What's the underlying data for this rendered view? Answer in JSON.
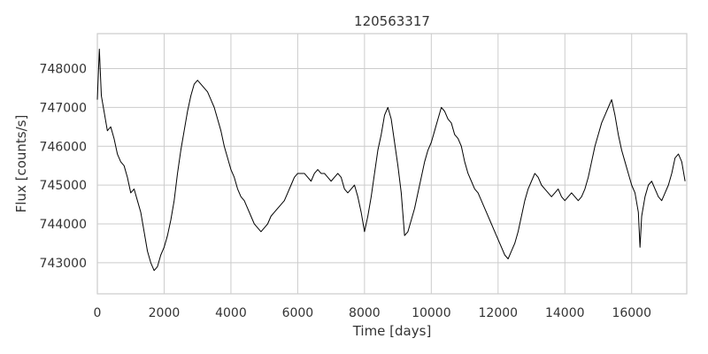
{
  "chart_data": {
    "type": "line",
    "title": "120563317",
    "xlabel": "Time [days]",
    "ylabel": "Flux [counts/s]",
    "xlim": [
      0,
      17650
    ],
    "ylim": [
      742200,
      748900
    ],
    "grid": true,
    "x_ticks": [
      0,
      2000,
      4000,
      6000,
      8000,
      10000,
      12000,
      14000,
      16000
    ],
    "y_ticks": [
      743000,
      744000,
      745000,
      746000,
      747000,
      748000
    ],
    "series": [
      {
        "color": "#000000",
        "points": [
          [
            0,
            747200
          ],
          [
            60,
            748500
          ],
          [
            120,
            747300
          ],
          [
            200,
            746900
          ],
          [
            300,
            746400
          ],
          [
            400,
            746500
          ],
          [
            500,
            746200
          ],
          [
            600,
            745800
          ],
          [
            700,
            745600
          ],
          [
            800,
            745500
          ],
          [
            900,
            745200
          ],
          [
            1000,
            744800
          ],
          [
            1100,
            744900
          ],
          [
            1200,
            744600
          ],
          [
            1300,
            744300
          ],
          [
            1400,
            743800
          ],
          [
            1500,
            743300
          ],
          [
            1600,
            743000
          ],
          [
            1700,
            742800
          ],
          [
            1800,
            742900
          ],
          [
            1900,
            743200
          ],
          [
            2000,
            743400
          ],
          [
            2100,
            743700
          ],
          [
            2200,
            744100
          ],
          [
            2300,
            744600
          ],
          [
            2400,
            745300
          ],
          [
            2500,
            745900
          ],
          [
            2600,
            746400
          ],
          [
            2700,
            746900
          ],
          [
            2800,
            747300
          ],
          [
            2900,
            747600
          ],
          [
            3000,
            747700
          ],
          [
            3100,
            747600
          ],
          [
            3200,
            747500
          ],
          [
            3300,
            747400
          ],
          [
            3400,
            747200
          ],
          [
            3500,
            747000
          ],
          [
            3600,
            746700
          ],
          [
            3700,
            746400
          ],
          [
            3800,
            746000
          ],
          [
            3900,
            745700
          ],
          [
            4000,
            745400
          ],
          [
            4100,
            745200
          ],
          [
            4200,
            744900
          ],
          [
            4300,
            744700
          ],
          [
            4400,
            744600
          ],
          [
            4500,
            744400
          ],
          [
            4600,
            744200
          ],
          [
            4700,
            744000
          ],
          [
            4800,
            743900
          ],
          [
            4900,
            743800
          ],
          [
            5000,
            743900
          ],
          [
            5100,
            744000
          ],
          [
            5200,
            744200
          ],
          [
            5300,
            744300
          ],
          [
            5400,
            744400
          ],
          [
            5500,
            744500
          ],
          [
            5600,
            744600
          ],
          [
            5700,
            744800
          ],
          [
            5800,
            745000
          ],
          [
            5900,
            745200
          ],
          [
            6000,
            745300
          ],
          [
            6100,
            745300
          ],
          [
            6200,
            745300
          ],
          [
            6300,
            745200
          ],
          [
            6400,
            745100
          ],
          [
            6500,
            745300
          ],
          [
            6600,
            745400
          ],
          [
            6700,
            745300
          ],
          [
            6800,
            745300
          ],
          [
            6900,
            745200
          ],
          [
            7000,
            745100
          ],
          [
            7100,
            745200
          ],
          [
            7200,
            745300
          ],
          [
            7300,
            745200
          ],
          [
            7400,
            744900
          ],
          [
            7500,
            744800
          ],
          [
            7600,
            744900
          ],
          [
            7700,
            745000
          ],
          [
            7800,
            744700
          ],
          [
            7900,
            744300
          ],
          [
            8000,
            743800
          ],
          [
            8100,
            744200
          ],
          [
            8200,
            744700
          ],
          [
            8300,
            745300
          ],
          [
            8400,
            745900
          ],
          [
            8500,
            746300
          ],
          [
            8600,
            746800
          ],
          [
            8700,
            747000
          ],
          [
            8800,
            746700
          ],
          [
            8900,
            746100
          ],
          [
            9000,
            745500
          ],
          [
            9100,
            744800
          ],
          [
            9200,
            743700
          ],
          [
            9300,
            743800
          ],
          [
            9400,
            744100
          ],
          [
            9500,
            744400
          ],
          [
            9600,
            744800
          ],
          [
            9700,
            745200
          ],
          [
            9800,
            745600
          ],
          [
            9900,
            745900
          ],
          [
            10000,
            746100
          ],
          [
            10100,
            746400
          ],
          [
            10200,
            746700
          ],
          [
            10300,
            747000
          ],
          [
            10400,
            746900
          ],
          [
            10500,
            746700
          ],
          [
            10600,
            746600
          ],
          [
            10700,
            746300
          ],
          [
            10800,
            746200
          ],
          [
            10900,
            746000
          ],
          [
            11000,
            745600
          ],
          [
            11100,
            745300
          ],
          [
            11200,
            745100
          ],
          [
            11300,
            744900
          ],
          [
            11400,
            744800
          ],
          [
            11500,
            744600
          ],
          [
            11600,
            744400
          ],
          [
            11700,
            744200
          ],
          [
            11800,
            744000
          ],
          [
            11900,
            743800
          ],
          [
            12000,
            743600
          ],
          [
            12100,
            743400
          ],
          [
            12200,
            743200
          ],
          [
            12300,
            743100
          ],
          [
            12400,
            743300
          ],
          [
            12500,
            743500
          ],
          [
            12600,
            743800
          ],
          [
            12700,
            744200
          ],
          [
            12800,
            744600
          ],
          [
            12900,
            744900
          ],
          [
            13000,
            745100
          ],
          [
            13100,
            745300
          ],
          [
            13200,
            745200
          ],
          [
            13300,
            745000
          ],
          [
            13400,
            744900
          ],
          [
            13500,
            744800
          ],
          [
            13600,
            744700
          ],
          [
            13700,
            744800
          ],
          [
            13800,
            744900
          ],
          [
            13900,
            744700
          ],
          [
            14000,
            744600
          ],
          [
            14100,
            744700
          ],
          [
            14200,
            744800
          ],
          [
            14300,
            744700
          ],
          [
            14400,
            744600
          ],
          [
            14500,
            744700
          ],
          [
            14600,
            744900
          ],
          [
            14700,
            745200
          ],
          [
            14800,
            745600
          ],
          [
            14900,
            746000
          ],
          [
            15000,
            746300
          ],
          [
            15100,
            746600
          ],
          [
            15200,
            746800
          ],
          [
            15300,
            747000
          ],
          [
            15400,
            747200
          ],
          [
            15500,
            746800
          ],
          [
            15600,
            746300
          ],
          [
            15700,
            745900
          ],
          [
            15800,
            745600
          ],
          [
            15900,
            745300
          ],
          [
            16000,
            745000
          ],
          [
            16100,
            744800
          ],
          [
            16200,
            744300
          ],
          [
            16250,
            743400
          ],
          [
            16300,
            744200
          ],
          [
            16400,
            744700
          ],
          [
            16500,
            745000
          ],
          [
            16600,
            745100
          ],
          [
            16700,
            744900
          ],
          [
            16800,
            744700
          ],
          [
            16900,
            744600
          ],
          [
            17000,
            744800
          ],
          [
            17100,
            745000
          ],
          [
            17200,
            745300
          ],
          [
            17300,
            745700
          ],
          [
            17400,
            745800
          ],
          [
            17500,
            745600
          ],
          [
            17600,
            745100
          ]
        ]
      }
    ]
  }
}
